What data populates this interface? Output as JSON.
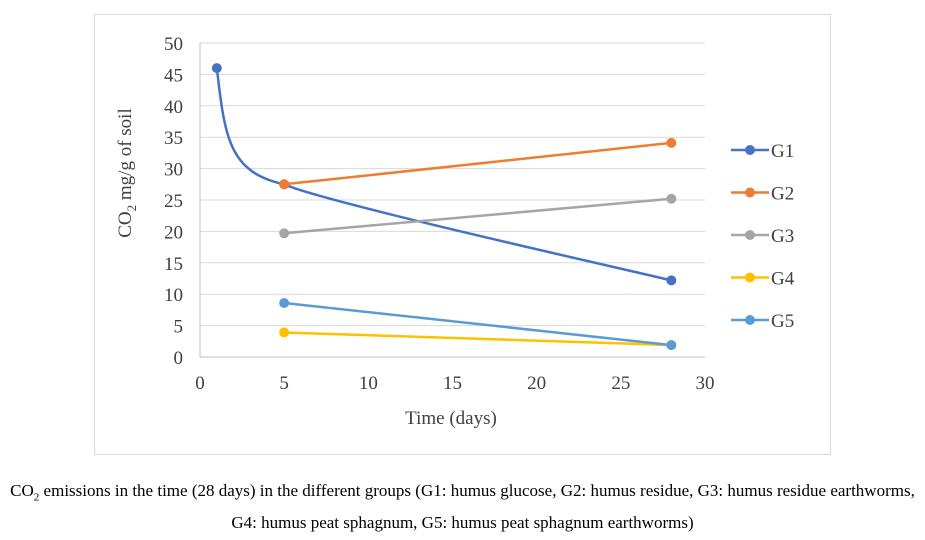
{
  "chart_data": {
    "type": "line",
    "title": "",
    "xlabel": "Time (days)",
    "ylabel": {
      "prefix": "CO",
      "sub": "2",
      "suffix": " mg/g of soil"
    },
    "xlim": [
      0,
      30
    ],
    "ylim": [
      0,
      50
    ],
    "xticks": [
      0,
      5,
      10,
      15,
      20,
      25,
      30
    ],
    "yticks": [
      0,
      5,
      10,
      15,
      20,
      25,
      30,
      35,
      40,
      45,
      50
    ],
    "grid": "horizontal",
    "legend": "right",
    "series": [
      {
        "name": "G1",
        "color": "#4472C4",
        "smooth": true,
        "points": [
          [
            1,
            46
          ],
          [
            5,
            27.5
          ],
          [
            28,
            12.2
          ]
        ]
      },
      {
        "name": "G2",
        "color": "#ED7D31",
        "smooth": false,
        "points": [
          [
            5,
            27.5
          ],
          [
            28,
            34.1
          ]
        ]
      },
      {
        "name": "G3",
        "color": "#A5A5A5",
        "smooth": false,
        "points": [
          [
            5,
            19.7
          ],
          [
            28,
            25.2
          ]
        ]
      },
      {
        "name": "G4",
        "color": "#FFC000",
        "smooth": false,
        "points": [
          [
            5,
            3.9
          ],
          [
            28,
            1.9
          ]
        ]
      },
      {
        "name": "G5",
        "color": "#5B9BD5",
        "smooth": false,
        "points": [
          [
            5,
            8.6
          ],
          [
            28,
            1.9
          ]
        ]
      }
    ]
  },
  "caption": {
    "prefix": "CO",
    "sub": "2",
    "text": " emissions in the time (28 days) in the different groups (G1: humus glucose, G2: humus residue, G3: humus residue earthworms, G4: humus peat sphagnum, G5: humus peat sphagnum earthworms)"
  }
}
